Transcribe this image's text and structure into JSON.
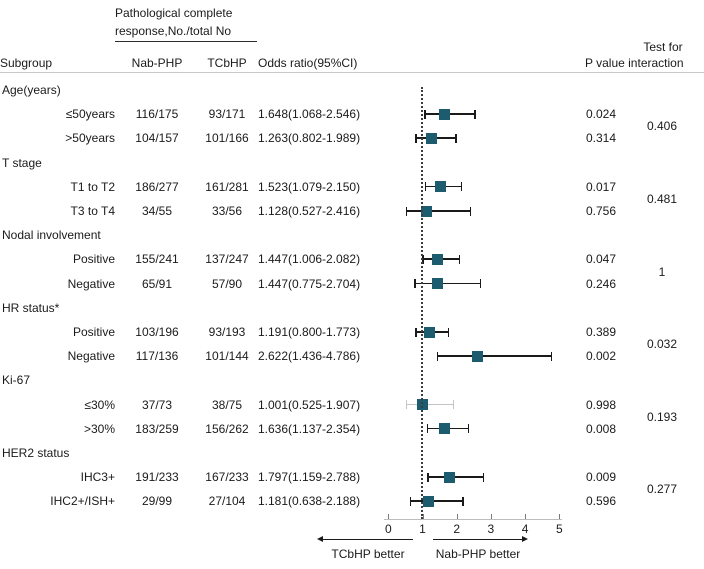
{
  "header": {
    "pcr_line1": "Pathological complete",
    "pcr_line2": "response,No./total No",
    "col_subgroup": "Subgroup",
    "col_nab": "Nab-PHP",
    "col_tcb": "TCbHP",
    "col_or": "Odds ratio(95%CI)",
    "col_test_line1": "Test for",
    "col_test_line2": "P value interaction"
  },
  "chart_data": {
    "type": "forest",
    "x_axis": {
      "min": 0,
      "max": 5,
      "ticks": [
        0,
        1,
        2,
        3,
        4,
        5
      ],
      "reference_line": 1
    },
    "colors": {
      "marker": "#1c5c6e",
      "whisker": "#1a1a1a",
      "whisker_muted": "#c4c4c4"
    },
    "footer": {
      "left_arrow_label": "TCbHP better",
      "right_arrow_label": "Nab-PHP better"
    },
    "sections": [
      {
        "label": "Age(years)",
        "interaction_p": "0.406",
        "rows": [
          {
            "subgroup": "≤50years",
            "nab_php": "116/175",
            "tcbhp": "93/171",
            "or": 1.648,
            "ci_low": 1.068,
            "ci_high": 2.546,
            "or_text": "1.648(1.068-2.546)",
            "p_value": "0.024",
            "muted": false
          },
          {
            "subgroup": ">50years",
            "nab_php": "104/157",
            "tcbhp": "101/166",
            "or": 1.263,
            "ci_low": 0.802,
            "ci_high": 1.989,
            "or_text": "1.263(0.802-1.989)",
            "p_value": "0.314",
            "muted": false
          }
        ]
      },
      {
        "label": "T stage",
        "interaction_p": "0.481",
        "rows": [
          {
            "subgroup": "T1 to T2",
            "nab_php": "186/277",
            "tcbhp": "161/281",
            "or": 1.523,
            "ci_low": 1.079,
            "ci_high": 2.15,
            "or_text": "1.523(1.079-2.150)",
            "p_value": "0.017",
            "muted": false
          },
          {
            "subgroup": "T3 to T4",
            "nab_php": "34/55",
            "tcbhp": "33/56",
            "or": 1.128,
            "ci_low": 0.527,
            "ci_high": 2.416,
            "or_text": "1.128(0.527-2.416)",
            "p_value": "0.756",
            "muted": false
          }
        ]
      },
      {
        "label": "Nodal involvement",
        "interaction_p": "1",
        "rows": [
          {
            "subgroup": "Positive",
            "nab_php": "155/241",
            "tcbhp": "137/247",
            "or": 1.447,
            "ci_low": 1.006,
            "ci_high": 2.082,
            "or_text": "1.447(1.006-2.082)",
            "p_value": "0.047",
            "muted": false
          },
          {
            "subgroup": "Negative",
            "nab_php": "65/91",
            "tcbhp": "57/90",
            "or": 1.447,
            "ci_low": 0.775,
            "ci_high": 2.704,
            "or_text": "1.447(0.775-2.704)",
            "p_value": "0.246",
            "muted": false
          }
        ]
      },
      {
        "label": "HR status*",
        "interaction_p": "0.032",
        "rows": [
          {
            "subgroup": "Positive",
            "nab_php": "103/196",
            "tcbhp": "93/193",
            "or": 1.191,
            "ci_low": 0.8,
            "ci_high": 1.773,
            "or_text": "1.191(0.800-1.773)",
            "p_value": "0.389",
            "muted": false
          },
          {
            "subgroup": "Negative",
            "nab_php": "117/136",
            "tcbhp": "101/144",
            "or": 2.622,
            "ci_low": 1.436,
            "ci_high": 4.786,
            "or_text": "2.622(1.436-4.786)",
            "p_value": "0.002",
            "muted": false
          }
        ]
      },
      {
        "label": "Ki-67",
        "interaction_p": "0.193",
        "rows": [
          {
            "subgroup": "≤30%",
            "nab_php": "37/73",
            "tcbhp": "38/75",
            "or": 1.001,
            "ci_low": 0.525,
            "ci_high": 1.907,
            "or_text": "1.001(0.525-1.907)",
            "p_value": "0.998",
            "muted": true
          },
          {
            "subgroup": ">30%",
            "nab_php": "183/259",
            "tcbhp": "156/262",
            "or": 1.636,
            "ci_low": 1.137,
            "ci_high": 2.354,
            "or_text": "1.636(1.137-2.354)",
            "p_value": "0.008",
            "muted": false
          }
        ]
      },
      {
        "label": "HER2 status",
        "interaction_p": "0.277",
        "rows": [
          {
            "subgroup": "IHC3+",
            "nab_php": "191/233",
            "tcbhp": "167/233",
            "or": 1.797,
            "ci_low": 1.159,
            "ci_high": 2.788,
            "or_text": "1.797(1.159-2.788)",
            "p_value": "0.009",
            "muted": false
          },
          {
            "subgroup": "IHC2+/ISH+",
            "nab_php": "29/99",
            "tcbhp": "27/104",
            "or": 1.181,
            "ci_low": 0.638,
            "ci_high": 2.188,
            "or_text": "1.181(0.638-2.188)",
            "p_value": "0.596",
            "muted": false
          }
        ]
      }
    ]
  }
}
